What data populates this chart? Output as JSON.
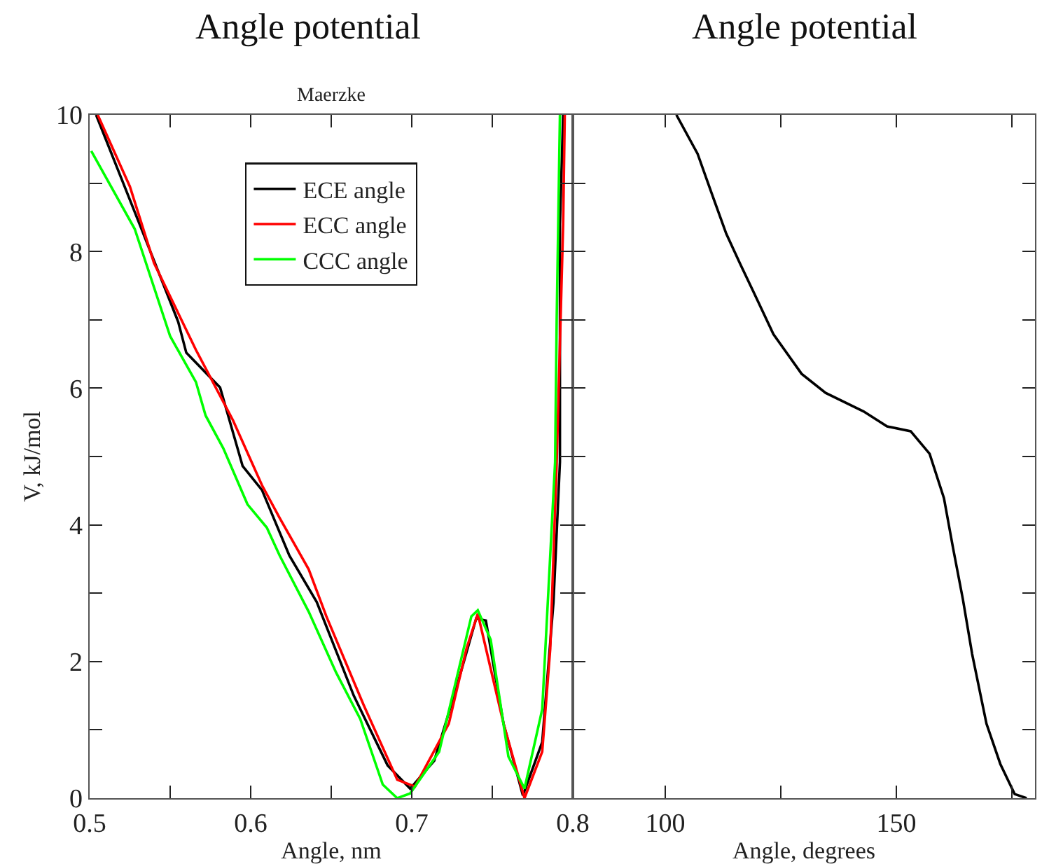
{
  "chart_data": [
    {
      "type": "line",
      "title": "Angle potential",
      "subtitle": "Maerzke",
      "xlabel": "Angle, nm",
      "ylabel": "V, kJ/mol",
      "xlim": [
        0.5,
        0.8
      ],
      "ylim": [
        0,
        10
      ],
      "xticks": [
        0.5,
        {
          "value": 0.55,
          "label": null
        },
        0.6,
        {
          "value": 0.65,
          "label": null
        },
        0.7,
        {
          "value": 0.75,
          "label": null
        },
        0.8
      ],
      "yticks": [
        0,
        {
          "value": 1,
          "label": null
        },
        2,
        {
          "value": 3,
          "label": null
        },
        4,
        {
          "value": 5,
          "label": null
        },
        6,
        {
          "value": 7,
          "label": null
        },
        8,
        {
          "value": 9,
          "label": null
        },
        10
      ],
      "grid": false,
      "legend": "top",
      "marker": "none",
      "line_style": "solid",
      "series": [
        {
          "name": "ECE angle",
          "color": "#000000",
          "x": [
            0.504,
            0.531,
            0.555,
            0.56,
            0.581,
            0.595,
            0.607,
            0.624,
            0.641,
            0.664,
            0.685,
            0.699,
            0.714,
            0.728,
            0.74,
            0.746,
            0.757,
            0.769,
            0.781,
            0.788,
            0.792,
            0.792,
            0.794
          ],
          "values": [
            10,
            8.4,
            6.97,
            6.52,
            6.01,
            4.86,
            4.51,
            3.55,
            2.87,
            1.5,
            0.48,
            0.14,
            0.55,
            1.64,
            2.63,
            2.6,
            1.09,
            0.04,
            0.82,
            2.87,
            4.92,
            8.4,
            10
          ]
        },
        {
          "name": "ECC angle",
          "color": "#ff0000",
          "x": [
            0.505,
            0.525,
            0.54,
            0.566,
            0.589,
            0.607,
            0.618,
            0.636,
            0.647,
            0.67,
            0.691,
            0.702,
            0.723,
            0.734,
            0.741,
            0.757,
            0.77,
            0.781,
            0.786,
            0.79,
            0.794,
            0.795
          ],
          "values": [
            10,
            8.95,
            7.83,
            6.56,
            5.53,
            4.58,
            4.1,
            3.35,
            2.66,
            1.37,
            0.27,
            0.17,
            1.09,
            2.19,
            2.7,
            1.09,
            0,
            0.68,
            2.19,
            4.92,
            8.4,
            10
          ]
        },
        {
          "name": "CCC angle",
          "color": "#00ff00",
          "x": [
            0.501,
            0.528,
            0.55,
            0.566,
            0.572,
            0.583,
            0.598,
            0.61,
            0.618,
            0.636,
            0.653,
            0.668,
            0.682,
            0.691,
            0.699,
            0.717,
            0.737,
            0.741,
            0.749,
            0.76,
            0.77,
            0.781,
            0.789,
            0.79,
            0.792
          ],
          "values": [
            9.47,
            8.33,
            6.76,
            6.09,
            5.6,
            5.12,
            4.3,
            3.96,
            3.55,
            2.73,
            1.84,
            1.16,
            0.2,
            0,
            0.07,
            0.68,
            2.66,
            2.75,
            2.32,
            0.61,
            0.14,
            1.3,
            4.92,
            7.03,
            10
          ]
        }
      ]
    },
    {
      "type": "line",
      "title": "Angle potential",
      "xlabel": "Angle, degrees",
      "xlim": [
        80,
        180
      ],
      "ylim": [
        0,
        10
      ],
      "xticks": [
        100,
        {
          "value": 125,
          "label": null
        },
        150,
        {
          "value": 175,
          "label": null
        }
      ],
      "yticks": [
        {
          "value": 0,
          "label": null
        },
        {
          "value": 1,
          "label": null
        },
        {
          "value": 2,
          "label": null
        },
        {
          "value": 3,
          "label": null
        },
        {
          "value": 4,
          "label": null
        },
        {
          "value": 5,
          "label": null
        },
        {
          "value": 6,
          "label": null
        },
        {
          "value": 7,
          "label": null
        },
        {
          "value": 8,
          "label": null
        },
        {
          "value": 9,
          "label": null
        },
        {
          "value": 10,
          "label": null
        }
      ],
      "tick_labels": "x",
      "grid": false,
      "legend": false,
      "marker": "none",
      "line_style": "solid",
      "series": [
        {
          "color": "#000000",
          "x": [
            102.4,
            107.0,
            110.1,
            113.2,
            116.2,
            119.3,
            123.4,
            129.5,
            134.7,
            142.9,
            148.0,
            153.1,
            157.2,
            160.3,
            162.3,
            164.4,
            166.4,
            169.5,
            172.5,
            175.6,
            178.2
          ],
          "values": [
            10,
            9.43,
            8.84,
            8.26,
            7.82,
            7.38,
            6.79,
            6.21,
            5.93,
            5.66,
            5.44,
            5.37,
            5.04,
            4.39,
            3.65,
            2.91,
            2.11,
            1.09,
            0.5,
            0.06,
            0
          ]
        }
      ]
    }
  ]
}
